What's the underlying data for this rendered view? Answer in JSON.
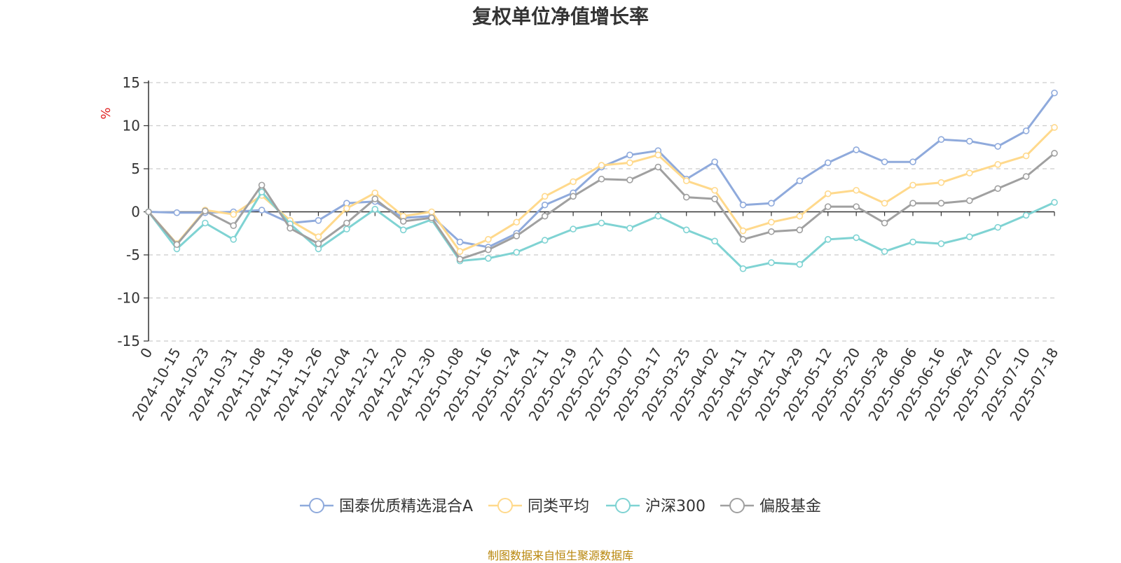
{
  "chart_data": {
    "type": "line",
    "title": "复权单位净值增长率",
    "ylabel": "%",
    "ylim": [
      -15,
      15
    ],
    "yticks": [
      -15,
      -10,
      -5,
      0,
      5,
      10,
      15
    ],
    "grid": true,
    "legend_position": "bottom",
    "xticks": [
      "0",
      "2024-10-15",
      "2024-10-23",
      "2024-10-31",
      "2024-11-08",
      "2024-11-18",
      "2024-11-26",
      "2024-12-04",
      "2024-12-12",
      "2024-12-20",
      "2024-12-30",
      "2025-01-08",
      "2025-01-16",
      "2025-01-24",
      "2025-02-11",
      "2025-02-19",
      "2025-02-27",
      "2025-03-07",
      "2025-03-17",
      "2025-03-25",
      "2025-04-02",
      "2025-04-11",
      "2025-04-21",
      "2025-04-29",
      "2025-05-12",
      "2025-05-20",
      "2025-05-28",
      "2025-06-06",
      "2025-06-16",
      "2025-06-24",
      "2025-07-02",
      "2025-07-10",
      "2025-07-18"
    ],
    "series": [
      {
        "name": "国泰优质精选混合A",
        "color": "#8faadc",
        "values": [
          0,
          -0.1,
          -0.1,
          0,
          0.2,
          -1.3,
          -1.0,
          1.0,
          1.2,
          -0.7,
          -0.5,
          -3.5,
          -4.1,
          -2.5,
          0.8,
          2.2,
          5.2,
          6.6,
          7.1,
          3.8,
          5.8,
          0.8,
          1.0,
          3.6,
          5.7,
          7.2,
          5.8,
          5.8,
          8.4,
          8.2,
          7.6,
          9.4,
          13.8
        ]
      },
      {
        "name": "同类平均",
        "color": "#ffd98c",
        "values": [
          0,
          -3.7,
          0.2,
          -0.3,
          1.9,
          -1.0,
          -2.9,
          0.4,
          2.2,
          -0.5,
          0.0,
          -4.6,
          -3.2,
          -1.2,
          1.8,
          3.5,
          5.4,
          5.7,
          6.6,
          3.6,
          2.5,
          -2.2,
          -1.2,
          -0.5,
          2.1,
          2.5,
          1.0,
          3.1,
          3.4,
          4.5,
          5.5,
          6.5,
          9.8
        ]
      },
      {
        "name": "沪深300",
        "color": "#7fd3d3",
        "values": [
          0,
          -4.3,
          -1.3,
          -3.2,
          2.3,
          -1.4,
          -4.3,
          -2.0,
          0.3,
          -2.1,
          -0.9,
          -5.7,
          -5.4,
          -4.7,
          -3.3,
          -2.0,
          -1.3,
          -1.9,
          -0.5,
          -2.1,
          -3.4,
          -6.6,
          -5.9,
          -6.1,
          -3.2,
          -3.0,
          -4.6,
          -3.5,
          -3.7,
          -2.9,
          -1.8,
          -0.4,
          1.1
        ]
      },
      {
        "name": "偏股基金",
        "color": "#a0a0a0",
        "values": [
          0,
          -3.8,
          0.1,
          -1.6,
          3.1,
          -1.9,
          -3.7,
          -1.3,
          1.5,
          -1.1,
          -0.7,
          -5.5,
          -4.4,
          -2.8,
          -0.5,
          1.8,
          3.8,
          3.7,
          5.2,
          1.7,
          1.5,
          -3.2,
          -2.3,
          -2.1,
          0.6,
          0.6,
          -1.3,
          1.0,
          1.0,
          1.3,
          2.7,
          4.1,
          6.8
        ]
      }
    ]
  },
  "footer": {
    "source": "制图数据来自恒生聚源数据库"
  }
}
